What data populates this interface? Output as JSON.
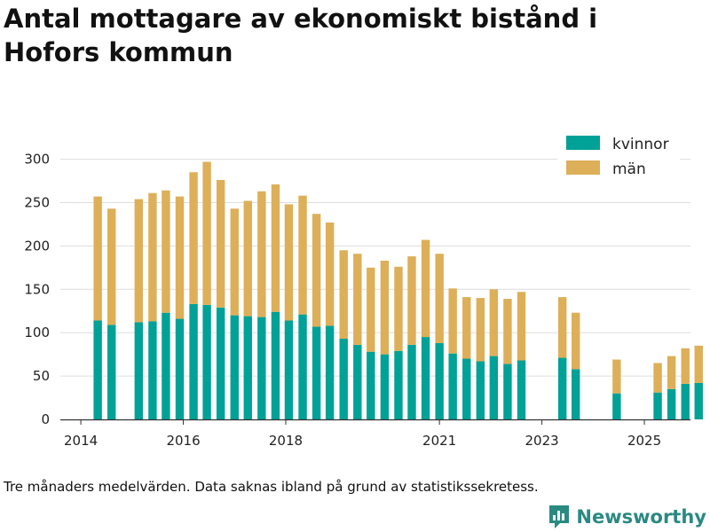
{
  "title": "Antal mottagare av ekonomiskt bistånd i Hofors kommun",
  "caption": "Tre månaders medelvärden. Data saknas ibland på grund av statistikssekretess.",
  "brand": {
    "name": "Newsworthy",
    "icon": "bar-chart-logo-icon"
  },
  "colors": {
    "kvinnor": "#00a196",
    "man": "#ddaf59",
    "grid": "#dddddd",
    "axis": "#333333",
    "brand": "#2a8a82"
  },
  "chart_data": {
    "type": "bar",
    "stacked": true,
    "title": "Antal mottagare av ekonomiskt bistånd i Hofors kommun",
    "xlabel": "",
    "ylabel": "",
    "ylim": [
      0,
      320
    ],
    "y_ticks": [
      0,
      50,
      100,
      150,
      200,
      250,
      300
    ],
    "x_ticks": [
      {
        "label": "2014",
        "x": 2014.0
      },
      {
        "label": "2016",
        "x": 2016.0
      },
      {
        "label": "2018",
        "x": 2018.0
      },
      {
        "label": "2021",
        "x": 2021.0
      },
      {
        "label": "2023",
        "x": 2023.0
      },
      {
        "label": "2025",
        "x": 2025.0
      }
    ],
    "xlim": [
      2013.6,
      2025.9
    ],
    "grid": true,
    "legend": "top-right",
    "categories": [
      "2014-Q3",
      "2014-Q4",
      "2015-Q3",
      "2015-Q4",
      "2016-Q1",
      "2016-Q2",
      "2016-Q3",
      "2016-Q4",
      "2017-Q1",
      "2017-Q2",
      "2017-Q3",
      "2017-Q4",
      "2018-Q1",
      "2018-Q2",
      "2018-Q3",
      "2018-Q4",
      "2019-Q1",
      "2019-Q2",
      "2019-Q3",
      "2019-Q4",
      "2020-Q1",
      "2020-Q2",
      "2020-Q3",
      "2020-Q4",
      "2021-Q1",
      "2021-Q2",
      "2021-Q3",
      "2021-Q4",
      "2022-Q1",
      "2022-Q2",
      "2022-Q3",
      "2023-Q2",
      "2023-Q3",
      "2024-Q2",
      "2025-Q1",
      "2025-Q2",
      "2025-Q3",
      "2025-Q4",
      "2026-Q1",
      "2026-Q2"
    ],
    "x": [
      2014.33,
      2014.6,
      2015.13,
      2015.4,
      2015.66,
      2015.93,
      2016.2,
      2016.46,
      2016.73,
      2017.0,
      2017.26,
      2017.53,
      2017.8,
      2018.06,
      2018.33,
      2018.6,
      2018.86,
      2019.13,
      2019.4,
      2019.66,
      2019.93,
      2020.2,
      2020.46,
      2020.73,
      2021.0,
      2021.26,
      2021.53,
      2021.8,
      2022.06,
      2022.33,
      2022.6,
      2023.4,
      2023.66,
      2024.46,
      2025.26,
      2025.53,
      2025.8,
      2026.06,
      2026.33,
      2026.6
    ],
    "series": [
      {
        "name": "kvinnor",
        "color": "#00a196",
        "values": [
          114,
          109,
          112,
          113,
          123,
          116,
          133,
          132,
          129,
          120,
          119,
          118,
          124,
          114,
          121,
          107,
          108,
          93,
          86,
          78,
          75,
          79,
          86,
          95,
          88,
          76,
          70,
          67,
          73,
          64,
          68,
          71,
          58,
          30,
          31,
          35,
          41,
          42,
          0,
          0
        ]
      },
      {
        "name": "män",
        "color": "#ddaf59",
        "values": [
          143,
          134,
          142,
          148,
          141,
          141,
          152,
          165,
          147,
          123,
          133,
          145,
          147,
          134,
          137,
          130,
          119,
          102,
          105,
          97,
          108,
          97,
          102,
          112,
          103,
          75,
          71,
          73,
          77,
          75,
          79,
          70,
          65,
          39,
          34,
          38,
          41,
          43,
          0,
          0
        ]
      }
    ]
  }
}
